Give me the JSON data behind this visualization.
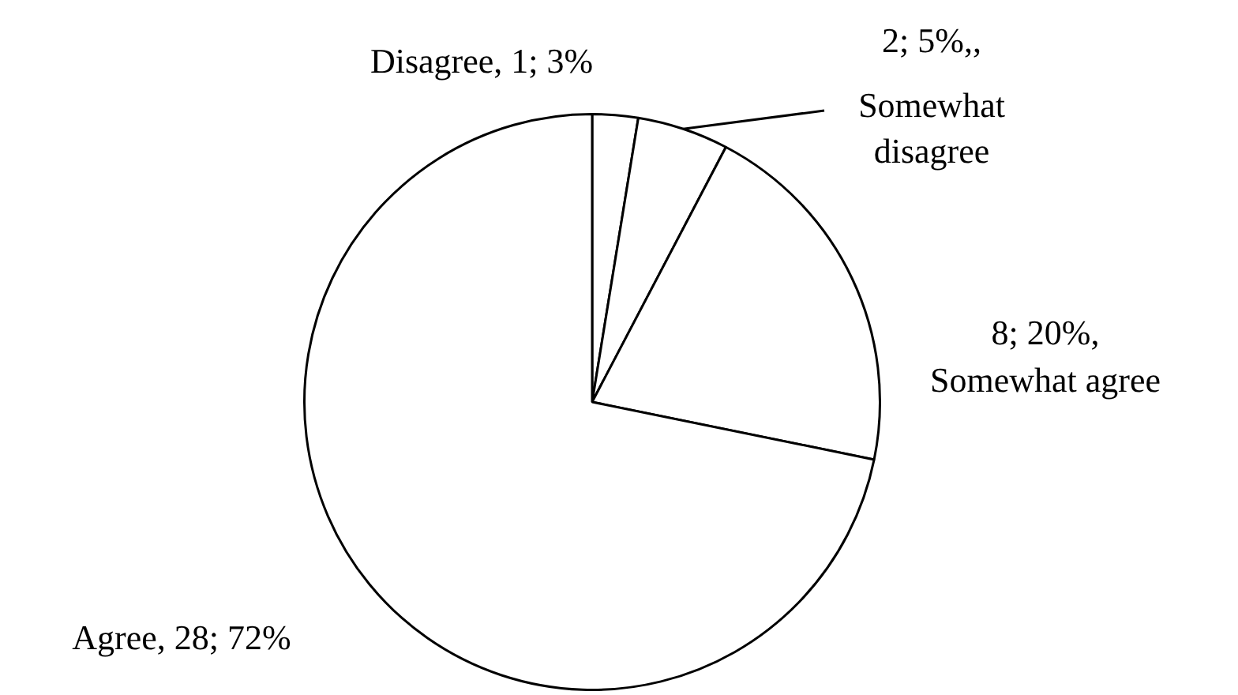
{
  "chart_data": {
    "type": "pie",
    "categories": [
      "Disagree",
      "Somewhat disagree",
      "Somewhat agree",
      "Agree"
    ],
    "values": [
      1,
      2,
      8,
      28
    ],
    "value_labels": [
      "1; 3%",
      "2; 5%,,",
      "8; 20%,",
      "28; 72%"
    ],
    "colors": [
      "#ffffff",
      "#ffffff",
      "#ffffff",
      "#ffffff"
    ],
    "legend": false
  }
}
